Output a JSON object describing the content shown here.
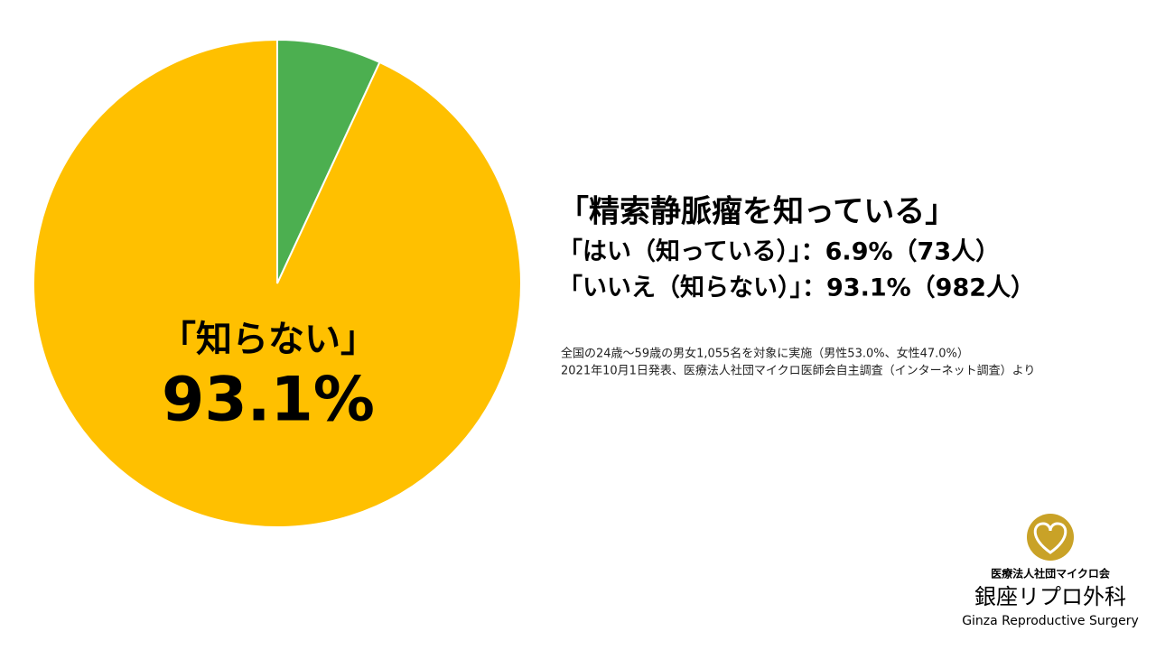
{
  "chart_data": {
    "type": "pie",
    "title": "「精索静脈瘤を知っている」",
    "categories": [
      "「はい（知っている）」",
      "「いいえ（知らない）」"
    ],
    "values": [
      6.9,
      93.1
    ],
    "colors": [
      "#4CAF50",
      "#FFC000"
    ],
    "slice_labels": [
      null,
      "「知らない」"
    ],
    "value_labels": [
      null,
      "93.1%"
    ],
    "legend": [
      "「はい（知っている）」：6.9%（73人）",
      "「いいえ（知らない）」：93.1%（982人）"
    ],
    "notes": [
      "全国の24歳〜59歳の男女1,055名を対象に実施（男性53.0%、女性47.0%）",
      "2021年10月1日発表、医療法人社団マイクロ医師会自主調査（インターネット調査）より"
    ]
  },
  "logo": {
    "organization": "医療法人社団マイクロ会",
    "name": "銀座リプロ外科",
    "english": "Ginza Reproductive Surgery"
  }
}
